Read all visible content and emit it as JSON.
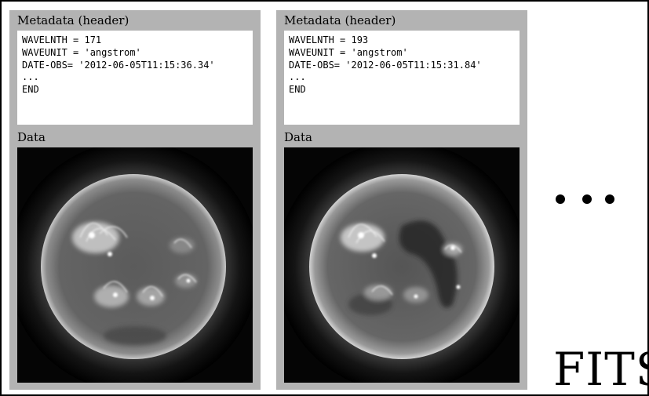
{
  "panels": [
    {
      "metadata_label": "Metadata (header)",
      "header_lines": [
        "WAVELNTH = 171",
        "WAVEUNIT = 'angstrom'",
        "DATE-OBS= '2012-06-05T11:15:36.34'",
        "...",
        "END"
      ],
      "data_label": "Data",
      "image_desc": "sun-image-171"
    },
    {
      "metadata_label": "Metadata (header)",
      "header_lines": [
        "WAVELNTH = 193",
        "WAVEUNIT = 'angstrom'",
        "DATE-OBS= '2012-06-05T11:15:31.84'",
        "...",
        "END"
      ],
      "data_label": "Data",
      "image_desc": "sun-image-193"
    }
  ],
  "ellipsis_icon": "ellipsis-icon",
  "format_label": "FITS"
}
